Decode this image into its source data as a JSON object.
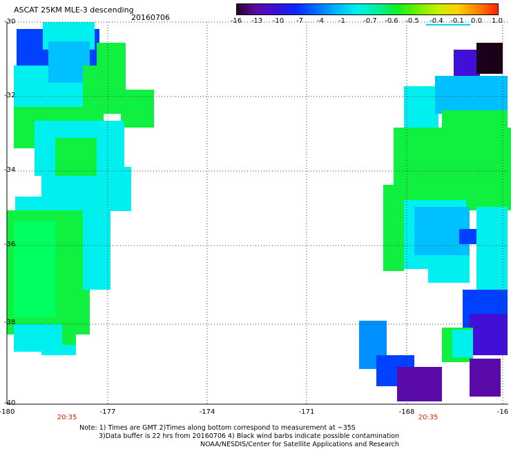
{
  "header": {
    "title": "ASCAT 25KM MLE-3 descending",
    "date": "20160706"
  },
  "colorbar": {
    "labels": [
      "-16",
      "-13",
      "-10",
      "-7",
      "-4",
      "-1",
      "-0.7",
      "-0.6",
      "-0.5",
      "-0.4",
      "-0.1",
      "0.0",
      "1.0"
    ],
    "colors": [
      "#2a0028",
      "#5a0aa8",
      "#3a10d8",
      "#0a28ff",
      "#0070ff",
      "#00b8ff",
      "#00f0f0",
      "#00f0a0",
      "#10f020",
      "#70f000",
      "#c8f000",
      "#ffd000",
      "#ff8000",
      "#ff2000"
    ]
  },
  "axes": {
    "y_labels": [
      "-30",
      "-32",
      "-34",
      "-36",
      "-38",
      "-40"
    ],
    "x_labels": [
      "-180",
      "-177",
      "-174",
      "-171",
      "-168",
      "-16"
    ],
    "pass_times": [
      "20:35",
      "20:35"
    ]
  },
  "notes": {
    "line1": "Note: 1) Times are GMT 2)Times along bottom correspond to measurement at ~35S",
    "line2": "3)Data buffer is 22 hrs from 20160706 4) Black wind barbs indicate possible contamination",
    "line3": "NOAA/NESDIS/Center for Satellite Applications and Research"
  },
  "chart_data": {
    "type": "heatmap",
    "title": "ASCAT 25KM MLE-3 descending",
    "subtitle": "20160706",
    "xlabel": "",
    "ylabel": "",
    "xlim": [
      -180,
      -165
    ],
    "ylim": [
      -40,
      -30
    ],
    "legend": "top-right colorbar",
    "grid": true,
    "colorbar_ticks": [
      -16,
      -13,
      -10,
      -7,
      -4,
      -1,
      -0.7,
      -0.6,
      -0.5,
      -0.4,
      -0.1,
      0.0,
      1.0
    ],
    "dominant_values_by_region": [
      {
        "region": "west swath",
        "lon_range": [
          -180,
          -176.7
        ],
        "lat_range": [
          -39.5,
          -30.2
        ],
        "typical_value": -0.6
      },
      {
        "region": "east swath",
        "lon_range": [
          -169.7,
          -165
        ],
        "lat_range": [
          -39.8,
          -30.6
        ],
        "typical_value": -0.6
      }
    ]
  }
}
